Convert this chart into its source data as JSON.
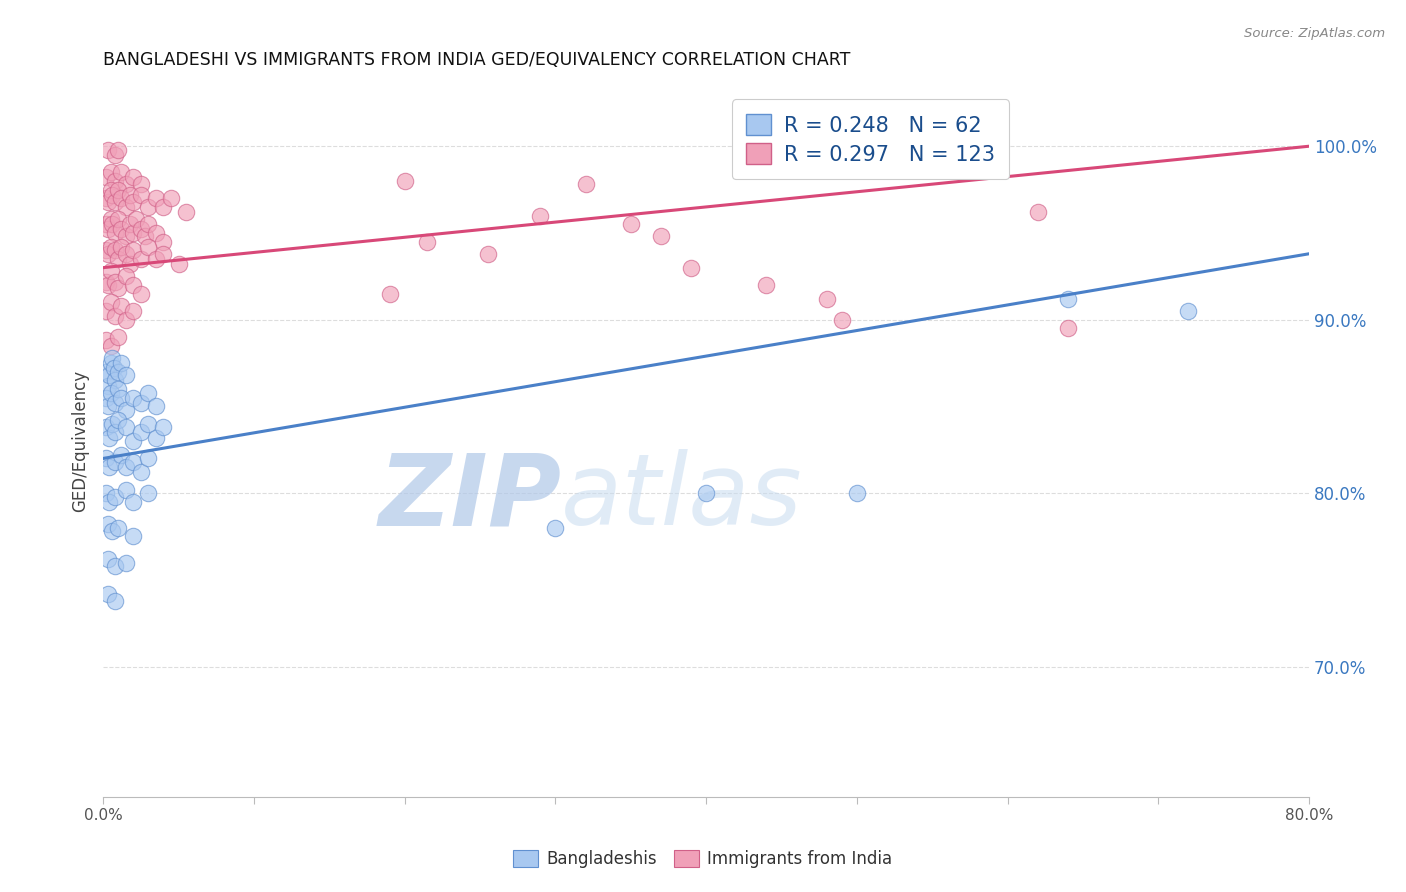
{
  "title": "BANGLADESHI VS IMMIGRANTS FROM INDIA GED/EQUIVALENCY CORRELATION CHART",
  "source": "Source: ZipAtlas.com",
  "ylabel": "GED/Equivalency",
  "ytick_labels": [
    "100.0%",
    "90.0%",
    "80.0%",
    "70.0%"
  ],
  "ytick_values": [
    1.0,
    0.9,
    0.8,
    0.7
  ],
  "xlim": [
    0.0,
    0.8
  ],
  "ylim": [
    0.625,
    1.035
  ],
  "legend": {
    "blue_R": "0.248",
    "blue_N": "62",
    "pink_R": "0.297",
    "pink_N": "123"
  },
  "blue_scatter": [
    [
      0.002,
      0.87
    ],
    [
      0.003,
      0.862
    ],
    [
      0.004,
      0.868
    ],
    [
      0.005,
      0.875
    ],
    [
      0.006,
      0.878
    ],
    [
      0.007,
      0.872
    ],
    [
      0.008,
      0.865
    ],
    [
      0.01,
      0.87
    ],
    [
      0.012,
      0.875
    ],
    [
      0.015,
      0.868
    ],
    [
      0.002,
      0.855
    ],
    [
      0.003,
      0.85
    ],
    [
      0.005,
      0.858
    ],
    [
      0.008,
      0.852
    ],
    [
      0.01,
      0.86
    ],
    [
      0.012,
      0.855
    ],
    [
      0.015,
      0.848
    ],
    [
      0.02,
      0.855
    ],
    [
      0.025,
      0.852
    ],
    [
      0.03,
      0.858
    ],
    [
      0.035,
      0.85
    ],
    [
      0.002,
      0.838
    ],
    [
      0.004,
      0.832
    ],
    [
      0.006,
      0.84
    ],
    [
      0.008,
      0.835
    ],
    [
      0.01,
      0.842
    ],
    [
      0.015,
      0.838
    ],
    [
      0.02,
      0.83
    ],
    [
      0.025,
      0.835
    ],
    [
      0.03,
      0.84
    ],
    [
      0.035,
      0.832
    ],
    [
      0.04,
      0.838
    ],
    [
      0.002,
      0.82
    ],
    [
      0.004,
      0.815
    ],
    [
      0.008,
      0.818
    ],
    [
      0.012,
      0.822
    ],
    [
      0.015,
      0.815
    ],
    [
      0.02,
      0.818
    ],
    [
      0.025,
      0.812
    ],
    [
      0.03,
      0.82
    ],
    [
      0.002,
      0.8
    ],
    [
      0.004,
      0.795
    ],
    [
      0.008,
      0.798
    ],
    [
      0.015,
      0.802
    ],
    [
      0.02,
      0.795
    ],
    [
      0.03,
      0.8
    ],
    [
      0.003,
      0.782
    ],
    [
      0.006,
      0.778
    ],
    [
      0.01,
      0.78
    ],
    [
      0.02,
      0.775
    ],
    [
      0.003,
      0.762
    ],
    [
      0.008,
      0.758
    ],
    [
      0.015,
      0.76
    ],
    [
      0.003,
      0.742
    ],
    [
      0.008,
      0.738
    ],
    [
      0.3,
      0.78
    ],
    [
      0.4,
      0.8
    ],
    [
      0.5,
      0.8
    ],
    [
      0.64,
      0.912
    ],
    [
      0.72,
      0.905
    ]
  ],
  "pink_scatter": [
    [
      0.003,
      0.998
    ],
    [
      0.008,
      0.995
    ],
    [
      0.01,
      0.998
    ],
    [
      0.002,
      0.982
    ],
    [
      0.005,
      0.985
    ],
    [
      0.008,
      0.98
    ],
    [
      0.012,
      0.985
    ],
    [
      0.015,
      0.978
    ],
    [
      0.02,
      0.982
    ],
    [
      0.025,
      0.978
    ],
    [
      0.002,
      0.97
    ],
    [
      0.003,
      0.968
    ],
    [
      0.005,
      0.975
    ],
    [
      0.006,
      0.972
    ],
    [
      0.008,
      0.968
    ],
    [
      0.01,
      0.975
    ],
    [
      0.012,
      0.97
    ],
    [
      0.015,
      0.965
    ],
    [
      0.018,
      0.972
    ],
    [
      0.02,
      0.968
    ],
    [
      0.025,
      0.972
    ],
    [
      0.03,
      0.965
    ],
    [
      0.035,
      0.97
    ],
    [
      0.04,
      0.965
    ],
    [
      0.045,
      0.97
    ],
    [
      0.055,
      0.962
    ],
    [
      0.002,
      0.955
    ],
    [
      0.003,
      0.952
    ],
    [
      0.005,
      0.958
    ],
    [
      0.006,
      0.955
    ],
    [
      0.008,
      0.95
    ],
    [
      0.01,
      0.958
    ],
    [
      0.012,
      0.952
    ],
    [
      0.015,
      0.948
    ],
    [
      0.018,
      0.955
    ],
    [
      0.02,
      0.95
    ],
    [
      0.022,
      0.958
    ],
    [
      0.025,
      0.952
    ],
    [
      0.028,
      0.948
    ],
    [
      0.03,
      0.955
    ],
    [
      0.035,
      0.95
    ],
    [
      0.04,
      0.945
    ],
    [
      0.002,
      0.94
    ],
    [
      0.003,
      0.938
    ],
    [
      0.005,
      0.942
    ],
    [
      0.008,
      0.94
    ],
    [
      0.01,
      0.935
    ],
    [
      0.012,
      0.942
    ],
    [
      0.015,
      0.938
    ],
    [
      0.018,
      0.932
    ],
    [
      0.02,
      0.94
    ],
    [
      0.025,
      0.935
    ],
    [
      0.03,
      0.942
    ],
    [
      0.035,
      0.935
    ],
    [
      0.04,
      0.938
    ],
    [
      0.05,
      0.932
    ],
    [
      0.002,
      0.922
    ],
    [
      0.003,
      0.92
    ],
    [
      0.005,
      0.928
    ],
    [
      0.008,
      0.922
    ],
    [
      0.01,
      0.918
    ],
    [
      0.015,
      0.925
    ],
    [
      0.02,
      0.92
    ],
    [
      0.025,
      0.915
    ],
    [
      0.002,
      0.905
    ],
    [
      0.005,
      0.91
    ],
    [
      0.008,
      0.902
    ],
    [
      0.012,
      0.908
    ],
    [
      0.015,
      0.9
    ],
    [
      0.02,
      0.905
    ],
    [
      0.002,
      0.888
    ],
    [
      0.005,
      0.885
    ],
    [
      0.01,
      0.89
    ],
    [
      0.2,
      0.98
    ],
    [
      0.32,
      0.978
    ],
    [
      0.29,
      0.96
    ],
    [
      0.35,
      0.955
    ],
    [
      0.37,
      0.948
    ],
    [
      0.215,
      0.945
    ],
    [
      0.255,
      0.938
    ],
    [
      0.39,
      0.93
    ],
    [
      0.44,
      0.92
    ],
    [
      0.48,
      0.912
    ],
    [
      0.49,
      0.9
    ],
    [
      0.19,
      0.915
    ],
    [
      0.62,
      0.962
    ],
    [
      0.64,
      0.895
    ]
  ],
  "blue_line": {
    "x0": 0.0,
    "y0": 0.82,
    "x1": 0.8,
    "y1": 0.938
  },
  "pink_line": {
    "x0": 0.0,
    "y0": 0.93,
    "x1": 0.8,
    "y1": 1.0
  },
  "blue_color": "#A8C8F0",
  "pink_color": "#F0A0B8",
  "blue_line_color": "#4A80C8",
  "pink_line_color": "#D84878",
  "blue_edge_color": "#6090D0",
  "pink_edge_color": "#D06088",
  "watermark_zip": "ZIP",
  "watermark_atlas": "atlas",
  "background_color": "#ffffff",
  "grid_color": "#dddddd"
}
